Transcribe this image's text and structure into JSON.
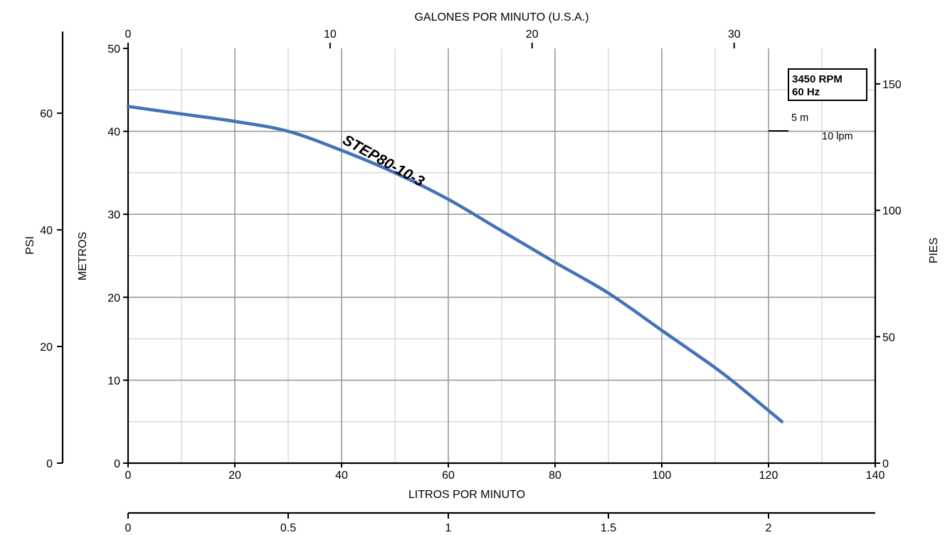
{
  "chart_data": {
    "type": "line",
    "title": "",
    "colors": {
      "curve": "#4472b8"
    },
    "x_bottom": {
      "label": "LITROS POR MINUTO",
      "range": [
        0,
        140
      ],
      "ticks": [
        0,
        20,
        40,
        60,
        80,
        100,
        120,
        140
      ],
      "grid_minor_step": 10
    },
    "x_top": {
      "label": "GALONES POR MINUTO (U.S.A.)",
      "ticks": [
        0,
        10,
        20,
        30
      ],
      "per_lpm": 0.264172
    },
    "x_bottom2": {
      "ticks": [
        "0",
        "0.5",
        "1",
        "1.5",
        "2"
      ],
      "tick_values": [
        0,
        0.5,
        1,
        1.5,
        2
      ],
      "per_lpm": 0.0166667
    },
    "y_main": {
      "label": "METROS",
      "range": [
        0,
        50
      ],
      "ticks": [
        0,
        10,
        20,
        30,
        40,
        50
      ],
      "grid_minor_step": 5
    },
    "y_psi": {
      "label": "PSI",
      "ticks": [
        0,
        20,
        40,
        60
      ],
      "per_meter": 1.4223
    },
    "y_right": {
      "label": "PIES",
      "ticks": [
        0,
        50,
        100,
        150
      ],
      "per_meter": 3.28084
    },
    "series": [
      {
        "name": "STEP80-10-3",
        "x": [
          0,
          10,
          20,
          30,
          40,
          50,
          60,
          70,
          80,
          90,
          100,
          110,
          115,
          122.5
        ],
        "y": [
          43.0,
          42.1,
          41.2,
          40.0,
          37.7,
          35.0,
          31.8,
          28.0,
          24.2,
          20.5,
          16.0,
          11.5,
          9.0,
          5.0
        ]
      }
    ],
    "annotations": {
      "rpm": "3450 RPM",
      "hz": "60 Hz",
      "scale_m": "5 m",
      "scale_lpm": "10 lpm"
    },
    "grid": true,
    "legend": "none"
  }
}
